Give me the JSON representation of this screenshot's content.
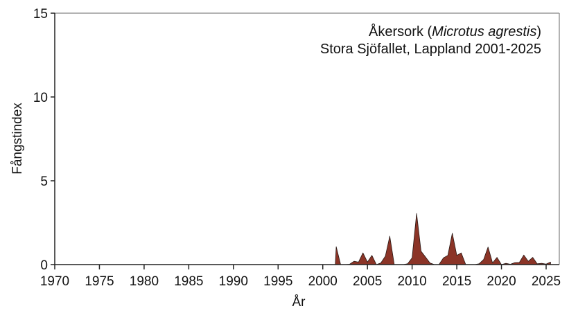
{
  "chart_data": {
    "type": "area",
    "title": "Åkersork (Microtus agrestis)",
    "title_parts": {
      "common": "Åkersork",
      "latin": "Microtus agrestis"
    },
    "subtitle": "Stora Sjöfallet, Lappland 2001-2025",
    "xlabel": "År",
    "ylabel": "Fångstindex",
    "xlim": [
      1970,
      2026.5
    ],
    "ylim": [
      0,
      15
    ],
    "xticks": [
      1970,
      1975,
      1980,
      1985,
      1990,
      1995,
      2000,
      2005,
      2010,
      2015,
      2020,
      2025
    ],
    "yticks": [
      0,
      5,
      10,
      15
    ],
    "grid": false,
    "legend": null,
    "fill_color": "#8b3427",
    "line_color": "#2a1a16",
    "x": [
      2001.4,
      2001.5,
      2002.0,
      2002.5,
      2003.0,
      2003.5,
      2004.0,
      2004.5,
      2005.0,
      2005.5,
      2006.0,
      2006.5,
      2007.0,
      2007.5,
      2008.0,
      2008.5,
      2009.0,
      2009.5,
      2010.0,
      2010.5,
      2011.0,
      2011.5,
      2012.0,
      2012.5,
      2013.0,
      2013.5,
      2014.0,
      2014.5,
      2015.0,
      2015.5,
      2016.0,
      2016.5,
      2017.0,
      2017.5,
      2018.0,
      2018.5,
      2019.0,
      2019.5,
      2020.0,
      2020.5,
      2021.0,
      2021.5,
      2022.0,
      2022.5,
      2023.0,
      2023.5,
      2024.0,
      2024.5,
      2025.0,
      2025.5
    ],
    "values": [
      0.0,
      1.07,
      0.0,
      0.0,
      0.02,
      0.2,
      0.15,
      0.7,
      0.15,
      0.55,
      0.0,
      0.1,
      0.5,
      1.7,
      0.0,
      0.0,
      0.0,
      0.05,
      0.4,
      3.05,
      0.8,
      0.45,
      0.1,
      0.0,
      0.0,
      0.4,
      0.55,
      1.87,
      0.55,
      0.7,
      0.0,
      0.0,
      0.0,
      0.05,
      0.3,
      1.05,
      0.1,
      0.43,
      0.0,
      0.08,
      0.02,
      0.12,
      0.13,
      0.57,
      0.2,
      0.43,
      0.05,
      0.08,
      0.03,
      0.15
    ]
  }
}
